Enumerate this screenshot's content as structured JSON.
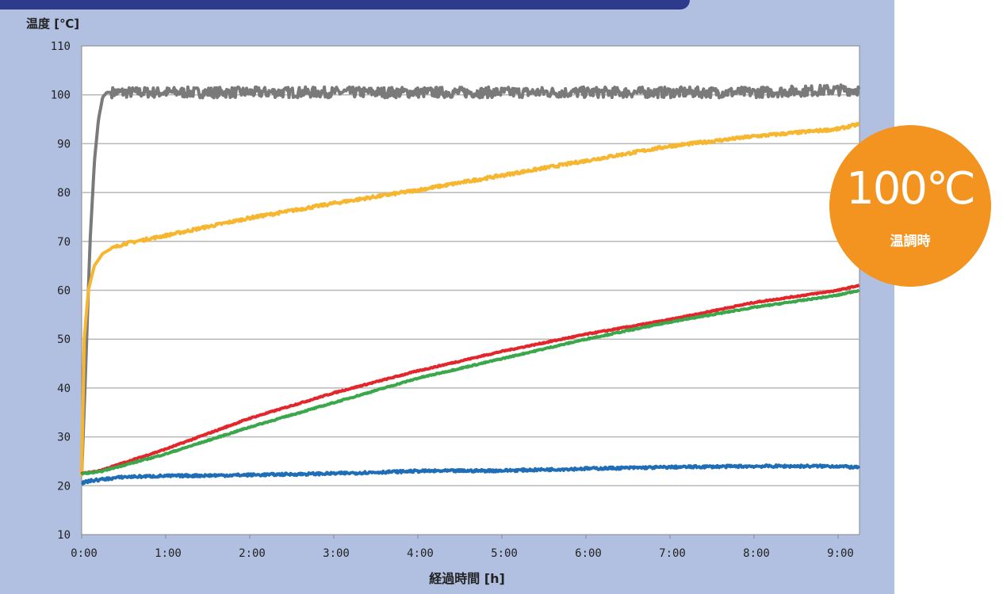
{
  "badge": {
    "temperature": "100℃",
    "caption": "温調時"
  },
  "chart_data": {
    "type": "line",
    "ylabel": "温度 [℃]",
    "xlabel": "経過時間 [h]",
    "ylim": [
      10,
      110
    ],
    "yticks": [
      "110",
      "100",
      "90",
      "80",
      "70",
      "60",
      "50",
      "40",
      "30",
      "20",
      "10"
    ],
    "xlim_hours": [
      0,
      9.25
    ],
    "xticks": [
      "0:00",
      "1:00",
      "2:00",
      "3:00",
      "4:00",
      "5:00",
      "6:00",
      "7:00",
      "8:00",
      "9:00"
    ],
    "grid": true,
    "series": [
      {
        "color": "#7a7a7a",
        "noise": 1.1,
        "x": [
          0,
          0.05,
          0.1,
          0.15,
          0.2,
          0.25,
          0.3,
          0.5,
          1,
          2,
          3,
          4,
          5,
          6,
          7,
          8,
          9,
          9.25
        ],
        "y": [
          22,
          45,
          70,
          86,
          95,
          99.5,
          100.5,
          100.5,
          100.5,
          100.5,
          100.5,
          100.5,
          100.5,
          100.5,
          100.5,
          100.5,
          101,
          101
        ]
      },
      {
        "color": "#f6b630",
        "noise": 0.3,
        "x": [
          0,
          0.03,
          0.08,
          0.15,
          0.25,
          0.35,
          0.5,
          1,
          2,
          3,
          4,
          5,
          6,
          7,
          8,
          9,
          9.25
        ],
        "y": [
          22,
          50,
          60,
          65,
          67.5,
          68.5,
          69.5,
          71.2,
          74.8,
          77.8,
          80.5,
          83.5,
          86.5,
          89.5,
          91.5,
          93,
          94
        ]
      },
      {
        "color": "#e2262b",
        "noise": 0.12,
        "x": [
          0,
          0.2,
          1,
          2,
          3,
          4,
          5,
          6,
          7,
          8,
          9,
          9.25
        ],
        "y": [
          22.5,
          23,
          27.5,
          33.8,
          39,
          43.5,
          47.5,
          51,
          54,
          57.5,
          60,
          61
        ]
      },
      {
        "color": "#3aa84a",
        "noise": 0.12,
        "x": [
          0,
          0.2,
          1,
          2,
          3,
          4,
          5,
          6,
          7,
          8,
          9,
          9.25
        ],
        "y": [
          22.5,
          22.8,
          26.5,
          32,
          37,
          42,
          46,
          50,
          53.5,
          56.5,
          59,
          60
        ]
      },
      {
        "color": "#1f6db5",
        "noise": 0.25,
        "x": [
          0,
          0.1,
          0.5,
          1,
          2,
          3,
          4,
          5,
          6,
          7,
          8,
          9,
          9.25
        ],
        "y": [
          20.5,
          21,
          21.8,
          22,
          22.2,
          22.5,
          23,
          23.1,
          23.5,
          23.8,
          24,
          24,
          23.7
        ]
      }
    ]
  }
}
